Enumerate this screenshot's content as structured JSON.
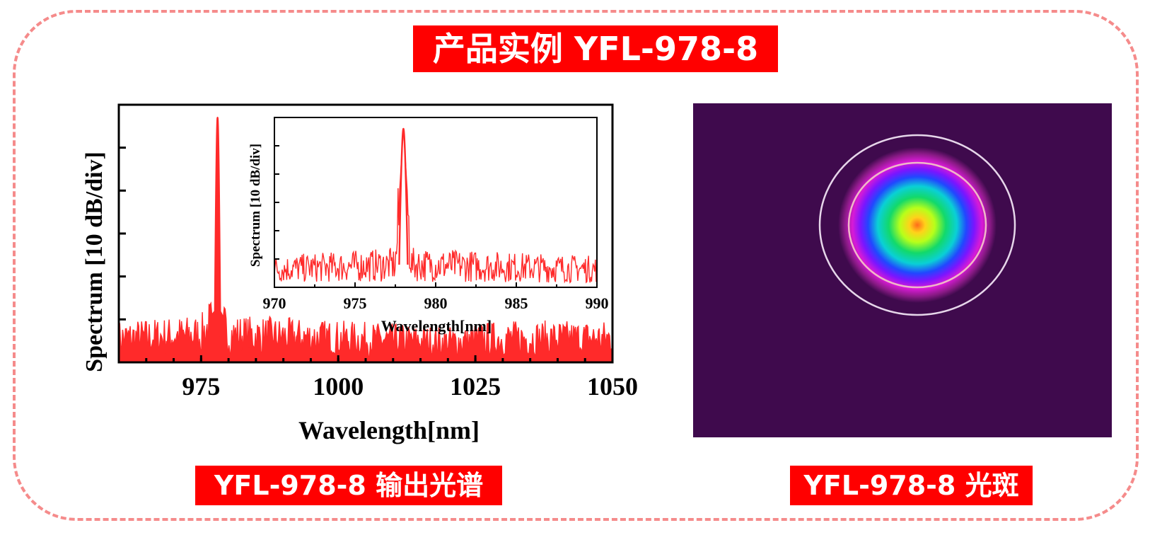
{
  "header": {
    "title": "产品实例 YFL-978-8"
  },
  "captions": {
    "spectrum": "YFL-978-8 输出光谱",
    "spot": "YFL-978-8 光斑"
  },
  "colors": {
    "accent": "#ff0000",
    "frame_border": "#f58b8b",
    "trace": "#ff2a2a",
    "beam_background": "#3f0a4d"
  },
  "chart_data": [
    {
      "type": "line",
      "xlabel": "Wavelength[nm]",
      "ylabel": "Spectrum [10 dB/div]",
      "xlim": [
        960,
        1050
      ],
      "xticks": [
        975,
        1000,
        1025,
        1050
      ],
      "ylim": [
        0,
        6
      ],
      "peak": {
        "x": 978,
        "y": 5.7
      },
      "noise_floor": 0.6,
      "series": [
        {
          "points": [
            [
              960,
              0.7
            ],
            [
              975,
              0.8
            ],
            [
              977.5,
              1.2
            ],
            [
              978,
              5.7
            ],
            [
              978.5,
              1.2
            ],
            [
              980,
              0.8
            ],
            [
              1000,
              0.7
            ],
            [
              1020,
              0.6
            ],
            [
              1030,
              0.7
            ],
            [
              1050,
              0.7
            ]
          ]
        }
      ]
    },
    {
      "type": "line",
      "inset": true,
      "xlabel": "Wavelength[nm]",
      "ylabel": "Spectrum [10 dB/div]",
      "xlim": [
        970,
        990
      ],
      "xticks": [
        970,
        975,
        980,
        985,
        990
      ],
      "ylim": [
        0,
        6
      ],
      "peak": {
        "x": 978,
        "y": 5.6
      },
      "noise_floor": 0.8,
      "series": [
        {
          "points": [
            [
              970,
              0.8
            ],
            [
              977.5,
              1.0
            ],
            [
              978,
              5.6
            ],
            [
              978.5,
              1.0
            ],
            [
              990,
              0.8
            ]
          ]
        }
      ]
    }
  ]
}
